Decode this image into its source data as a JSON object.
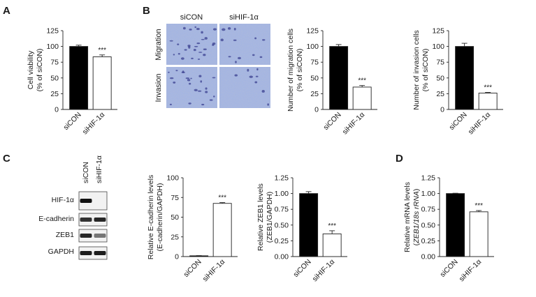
{
  "panel_labels": [
    "A",
    "B",
    "C",
    "D"
  ],
  "micrograph": {
    "col_labels": [
      "siCON",
      "siHIF-1α"
    ],
    "row_labels": [
      "Migration",
      "Invasion"
    ]
  },
  "western_blot": {
    "lanes": [
      "siCON",
      "siHIF-1α"
    ],
    "bands": [
      "HIF-1α",
      "E-cadherin",
      "ZEB1",
      "GAPDH"
    ],
    "band_intensity": [
      [
        1.0,
        0.0
      ],
      [
        0.85,
        0.9
      ],
      [
        0.9,
        0.55
      ],
      [
        0.95,
        0.95
      ]
    ]
  },
  "chart_data": [
    {
      "id": "A",
      "type": "bar",
      "categories": [
        "siCON",
        "siHIF-1α"
      ],
      "values": [
        100,
        83.5
      ],
      "errors": [
        2,
        3
      ],
      "fill": [
        "#000000",
        "#ffffff"
      ],
      "annotations": [
        "",
        "***"
      ],
      "ylabel_lines": [
        "Cell viability",
        "(% of siCON)"
      ],
      "ylim": [
        0,
        125
      ],
      "yticks": [
        "0",
        "25",
        "50",
        "75",
        "100",
        "125"
      ]
    },
    {
      "id": "B1",
      "type": "bar",
      "categories": [
        "siCON",
        "siHIF-1α"
      ],
      "values": [
        100,
        35.5
      ],
      "errors": [
        3,
        2.5
      ],
      "fill": [
        "#000000",
        "#ffffff"
      ],
      "annotations": [
        "",
        "***"
      ],
      "ylabel_lines": [
        "Number of migration cells",
        "(% of siCON)"
      ],
      "ylim": [
        0,
        125
      ],
      "yticks": [
        "0",
        "25",
        "50",
        "75",
        "100",
        "125"
      ]
    },
    {
      "id": "B2",
      "type": "bar",
      "categories": [
        "siCON",
        "siHIF-1α"
      ],
      "values": [
        100,
        26
      ],
      "errors": [
        5,
        1
      ],
      "fill": [
        "#000000",
        "#ffffff"
      ],
      "annotations": [
        "",
        "***"
      ],
      "ylabel_lines": [
        "Number of invasion cells",
        "(% of siCON)"
      ],
      "ylim": [
        0,
        125
      ],
      "yticks": [
        "0",
        "25",
        "50",
        "75",
        "100",
        "125"
      ]
    },
    {
      "id": "C1",
      "type": "bar",
      "categories": [
        "siCON",
        "siHIF-1α"
      ],
      "values": [
        1,
        67.5
      ],
      "errors": [
        0.2,
        1
      ],
      "fill": [
        "#000000",
        "#ffffff"
      ],
      "annotations": [
        "",
        "***"
      ],
      "ylabel_lines": [
        "Relative E-cadherin levels",
        "(E-cadherin/GAPDH)"
      ],
      "ylim": [
        0,
        100
      ],
      "yticks": [
        "0",
        "25",
        "50",
        "75",
        "100"
      ]
    },
    {
      "id": "C2",
      "type": "bar",
      "categories": [
        "siCON",
        "siHIF-1α"
      ],
      "values": [
        1.0,
        0.36
      ],
      "errors": [
        0.03,
        0.05
      ],
      "fill": [
        "#000000",
        "#ffffff"
      ],
      "annotations": [
        "",
        "***"
      ],
      "ylabel_lines": [
        "Relative ZEB1 levels",
        "(ZEB1/GAPDH)"
      ],
      "ylim": [
        0,
        1.25
      ],
      "yticks": [
        "0.00",
        "0.25",
        "0.50",
        "0.75",
        "1.00",
        "1.25"
      ]
    },
    {
      "id": "D",
      "type": "bar",
      "categories": [
        "siCON",
        "siHIF-1α"
      ],
      "values": [
        1.0,
        0.71
      ],
      "errors": [
        0.005,
        0.02
      ],
      "fill": [
        "#000000",
        "#ffffff"
      ],
      "annotations": [
        "",
        "***"
      ],
      "ylabel_lines": [
        "Relative mRNA levels",
        "(ZEB1/18s rRNA)"
      ],
      "ylim": [
        0,
        1.25
      ],
      "yticks": [
        "0.00",
        "0.25",
        "0.50",
        "0.75",
        "1.00",
        "1.25"
      ]
    }
  ]
}
